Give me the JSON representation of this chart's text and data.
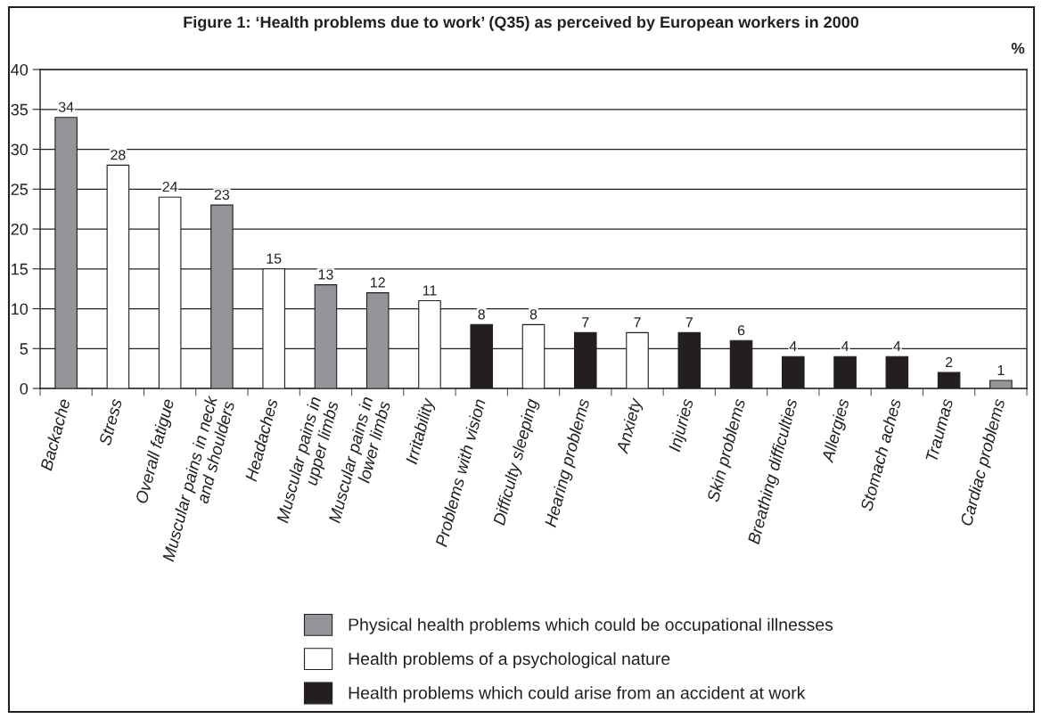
{
  "chart_data": {
    "type": "bar",
    "title": "Figure 1: ‘Health problems due to work’ (Q35) as perceived by European workers in 2000",
    "ylabel": "%",
    "categories": [
      "Backache",
      "Stress",
      "Overall fatigue",
      "Muscular pains in neck\nand shoulders",
      "Headaches",
      "Muscular pains in\nupper limbs",
      "Muscular pains in\nlower limbs",
      "Irritability",
      "Problems with vision",
      "Difficulty sleeping",
      "Hearing problems",
      "Anxiety",
      "Injuries",
      "Skin problems",
      "Breathing difficulties",
      "Allergies",
      "Stomach aches",
      "Traumas",
      "Cardiac problems"
    ],
    "series": [
      {
        "name": "Physical health problems which could be occupational illnesses",
        "color": "#939598",
        "values": [
          34,
          null,
          null,
          23,
          null,
          13,
          12,
          null,
          null,
          null,
          null,
          null,
          null,
          null,
          null,
          null,
          null,
          null,
          1
        ]
      },
      {
        "name": "Health problems of a psychological nature",
        "color": "#ffffff",
        "values": [
          null,
          28,
          24,
          null,
          15,
          null,
          null,
          11,
          null,
          8,
          null,
          7,
          null,
          null,
          null,
          null,
          null,
          null,
          null
        ]
      },
      {
        "name": "Health problems which could arise from an accident at work",
        "color": "#231f20",
        "values": [
          null,
          null,
          null,
          null,
          null,
          null,
          null,
          null,
          8,
          null,
          7,
          null,
          7,
          6,
          4,
          4,
          4,
          2,
          null
        ]
      }
    ],
    "stacked": true,
    "ylim": [
      0,
      40
    ],
    "yticks": [
      0,
      5,
      10,
      15,
      20,
      25,
      30,
      35,
      40
    ],
    "grid": "y",
    "legend": "bottom",
    "data_labels": true
  }
}
